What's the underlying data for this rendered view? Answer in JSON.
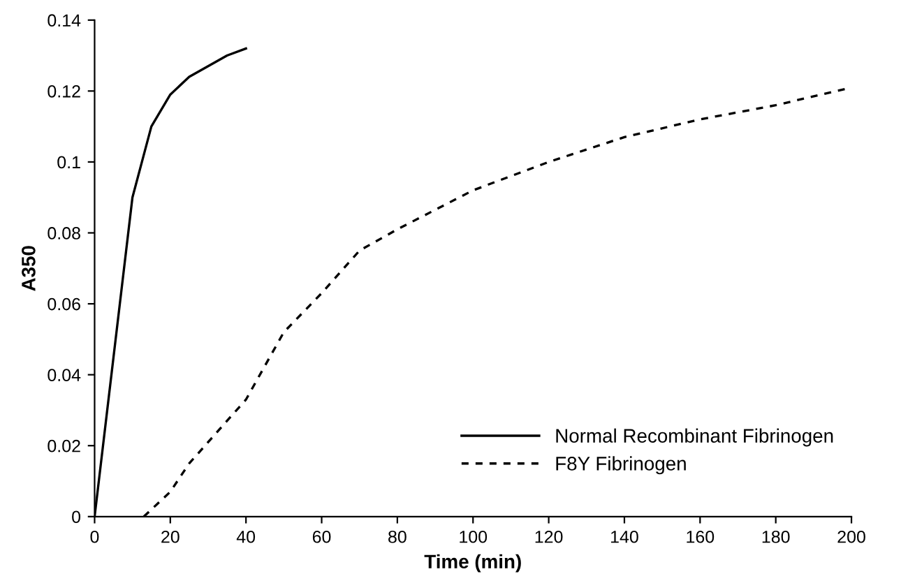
{
  "chart_data": {
    "type": "line",
    "xlabel": "Time (min)",
    "ylabel": "A350",
    "xlim": [
      0,
      200
    ],
    "xticks": [
      0,
      20,
      40,
      60,
      80,
      100,
      120,
      140,
      160,
      180,
      200
    ],
    "ylim": [
      0,
      0.14
    ],
    "yticks": [
      0,
      0.02,
      0.04,
      0.06,
      0.08,
      0.1,
      0.12,
      0.14
    ],
    "grid": false,
    "legend": "bottom right",
    "marker": "none",
    "series": [
      {
        "name": "Normal Recombinant Fibrinogen",
        "color": "#000000",
        "line_style": "solid",
        "x": [
          0,
          5,
          10,
          15,
          20,
          25,
          30,
          35,
          40
        ],
        "values": [
          0,
          0.045,
          0.09,
          0.11,
          0.119,
          0.124,
          0.127,
          0.13,
          0.132
        ]
      },
      {
        "name": "F8Y Fibrinogen",
        "color": "#000000",
        "line_style": "dashed",
        "x": [
          13,
          15,
          20,
          25,
          30,
          40,
          50,
          60,
          70,
          80,
          100,
          120,
          140,
          160,
          180,
          200
        ],
        "values": [
          0,
          0.002,
          0.007,
          0.015,
          0.021,
          0.033,
          0.052,
          0.063,
          0.075,
          0.081,
          0.092,
          0.1,
          0.107,
          0.112,
          0.116,
          0.121
        ]
      }
    ]
  }
}
